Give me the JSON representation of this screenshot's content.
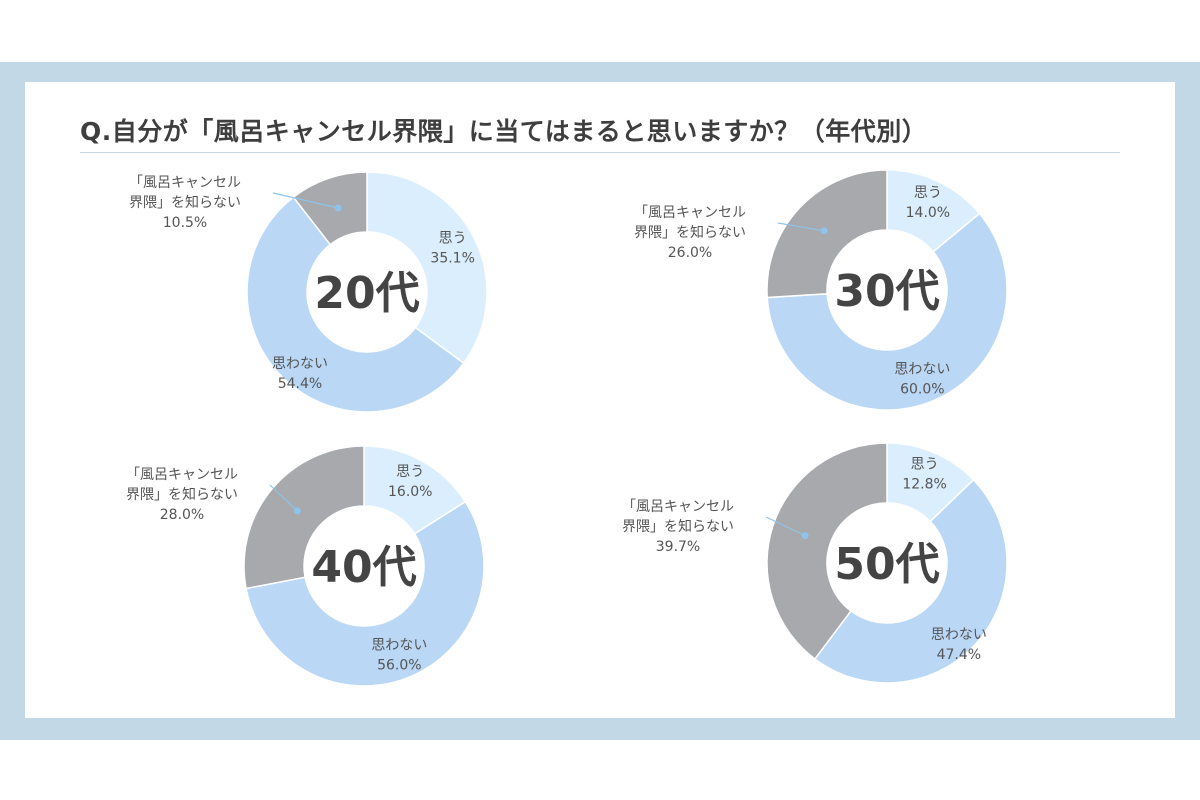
{
  "title": "Q.自分が「風呂キャンセル界隈」に当てはまると思いますか？（年代別）",
  "colors": {
    "omou": "#dbeefd",
    "omowanai": "#bad7f6",
    "shiranai": "#a8a9ad",
    "leader": "#8ec3ea",
    "text": "#555555"
  },
  "chart_data": [
    {
      "type": "pie",
      "title": "20代",
      "slices": [
        {
          "label": "思う",
          "value": 35.1,
          "value_text": "35.1%"
        },
        {
          "label": "思わない",
          "value": 54.4,
          "value_text": "54.4%"
        },
        {
          "label": "「風呂キャンセル界隈」を知らない",
          "value": 10.5,
          "value_text": "10.5%"
        }
      ]
    },
    {
      "type": "pie",
      "title": "30代",
      "slices": [
        {
          "label": "思う",
          "value": 14.0,
          "value_text": "14.0%"
        },
        {
          "label": "思わない",
          "value": 60.0,
          "value_text": "60.0%"
        },
        {
          "label": "「風呂キャンセル界隈」を知らない",
          "value": 26.0,
          "value_text": "26.0%"
        }
      ]
    },
    {
      "type": "pie",
      "title": "40代",
      "slices": [
        {
          "label": "思う",
          "value": 16.0,
          "value_text": "16.0%"
        },
        {
          "label": "思わない",
          "value": 56.0,
          "value_text": "56.0%"
        },
        {
          "label": "「風呂キャンセル界隈」を知らない",
          "value": 28.0,
          "value_text": "28.0%"
        }
      ]
    },
    {
      "type": "pie",
      "title": "50代",
      "slices": [
        {
          "label": "思う",
          "value": 12.8,
          "value_text": "12.8%"
        },
        {
          "label": "思わない",
          "value": 47.4,
          "value_text": "47.4%"
        },
        {
          "label": "「風呂キャンセル界隈」を知らない",
          "value": 39.7,
          "value_text": "39.7%"
        }
      ]
    }
  ]
}
